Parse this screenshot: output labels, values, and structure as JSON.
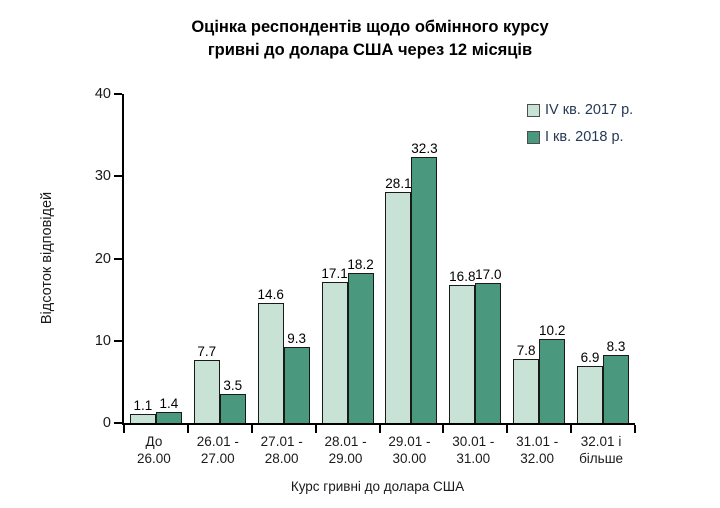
{
  "title": {
    "line1": "Оцінка респондентів щодо обмінного курсу",
    "line2": "гривні до долара США через 12 місяців"
  },
  "chart_data": {
    "type": "bar",
    "title": "Оцінка респондентів щодо обмінного курсу гривні до долара США через 12 місяців",
    "categories": [
      [
        "До",
        "26.00"
      ],
      [
        "26.01 -",
        "27.00"
      ],
      [
        "27.01 -",
        "28.00"
      ],
      [
        "28.01 -",
        "29.00"
      ],
      [
        "29.01 -",
        "30.00"
      ],
      [
        "30.01 -",
        "31.00"
      ],
      [
        "31.01 -",
        "32.00"
      ],
      [
        "32.01 і",
        "більше"
      ]
    ],
    "series": [
      {
        "name": "IV кв. 2017 р.",
        "color": "#c9e2d6",
        "values": [
          1.1,
          7.7,
          14.6,
          17.1,
          28.1,
          16.8,
          7.8,
          6.9
        ],
        "labels": [
          "1.1",
          "7.7",
          "14.6",
          "17.1",
          "28.1",
          "16.8",
          "7.8",
          "6.9"
        ]
      },
      {
        "name": "I кв. 2018 р.",
        "color": "#4a997f",
        "values": [
          1.4,
          3.5,
          9.3,
          18.2,
          32.3,
          17.0,
          10.2,
          8.3
        ],
        "labels": [
          "1.4",
          "3.5",
          "9.3",
          "18.2",
          "32.3",
          "17.0",
          "10.2",
          "8.3"
        ]
      }
    ],
    "xlabel": "Курс гривні до долара США",
    "ylabel": "Відсоток відповідей",
    "ylim": [
      0,
      40
    ],
    "yticks": [
      0,
      10,
      20,
      30,
      40
    ],
    "legend_position": "top-right",
    "grid": false
  },
  "colors": {
    "axis": "#000000",
    "text": "#000000",
    "legend_text": "#243a55",
    "bar_border": "#1a1a1a"
  }
}
